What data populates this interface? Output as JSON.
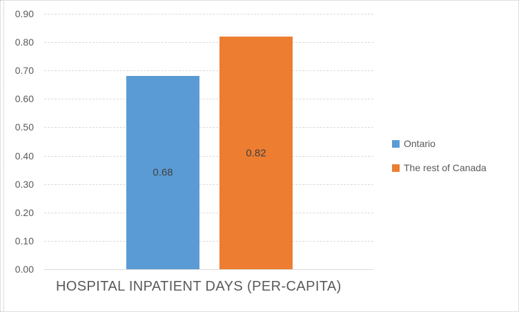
{
  "chart_data": {
    "type": "bar",
    "title": "HOSPITAL INPATIENT DAYS (PER-CAPITA)",
    "series": [
      {
        "name": "Ontario",
        "value": 0.68,
        "label": "0.68",
        "color": "#5B9BD5"
      },
      {
        "name": "The rest of Canada",
        "value": 0.82,
        "label": "0.82",
        "color": "#ED7D31"
      }
    ],
    "y_axis": {
      "min": 0.0,
      "max": 0.9,
      "step": 0.1,
      "tick_labels": [
        "0.00",
        "0.10",
        "0.20",
        "0.30",
        "0.40",
        "0.50",
        "0.60",
        "0.70",
        "0.80",
        "0.90"
      ]
    },
    "legend_position": "right",
    "grid": true,
    "colors": {
      "gridline": "#d9d9d9",
      "axis_line": "#d9d9d9",
      "tick_text": "#595959",
      "data_label_text": "#404040",
      "legend_text": "#595959",
      "title_text": "#595959"
    }
  }
}
